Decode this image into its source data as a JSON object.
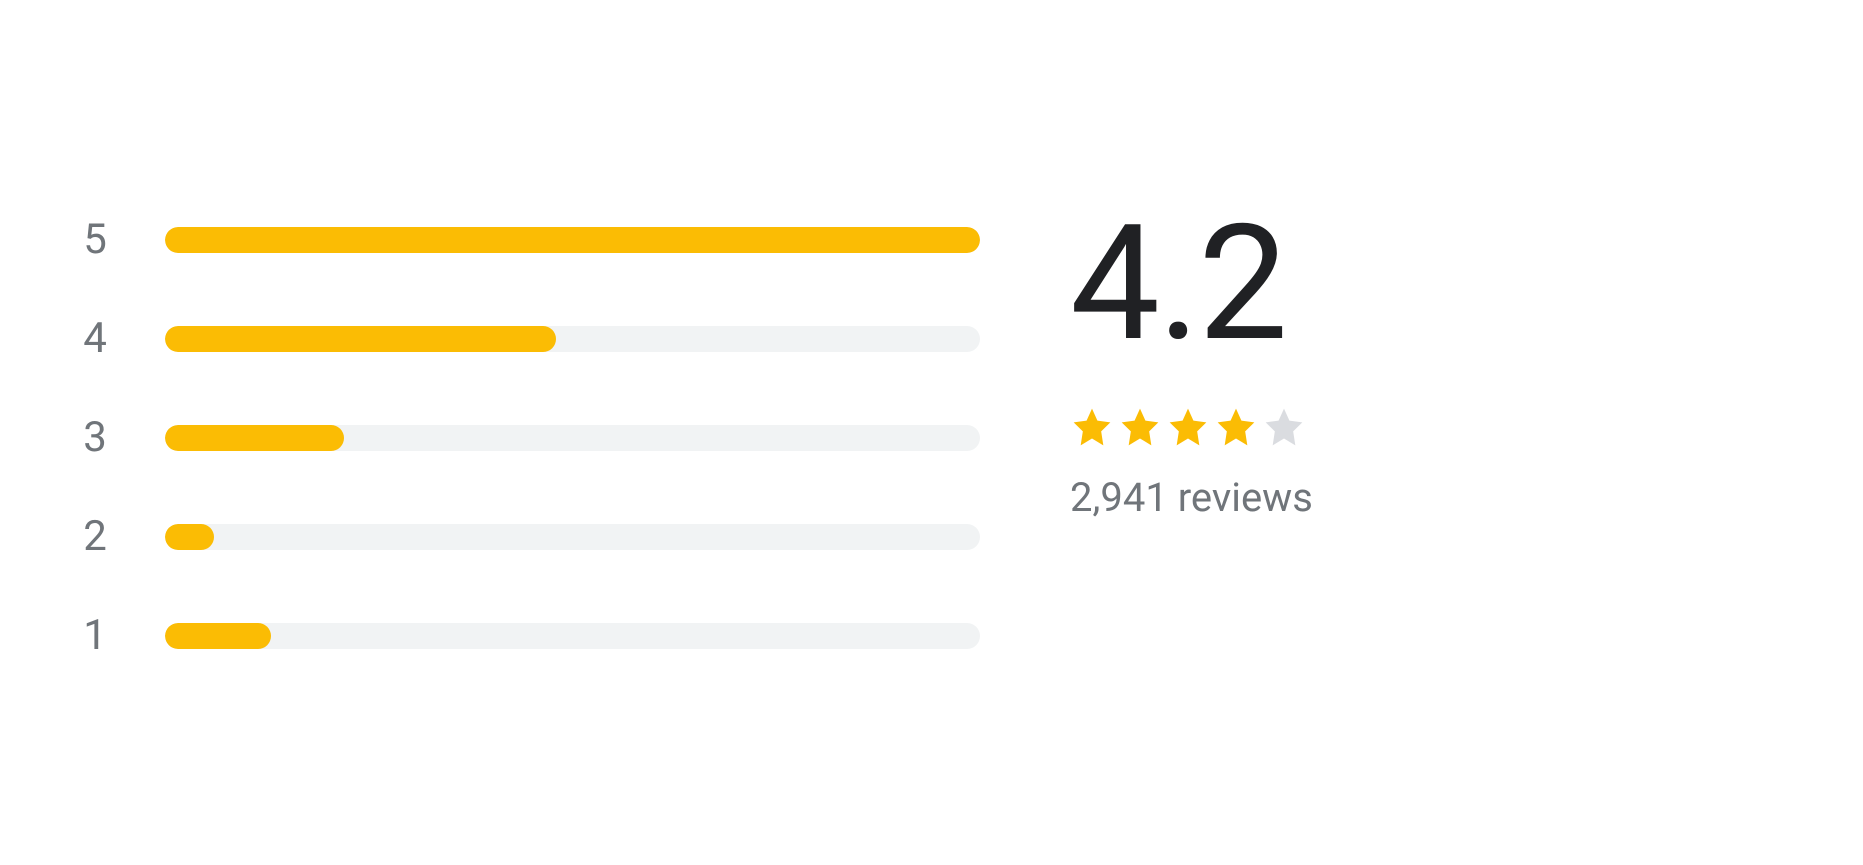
{
  "rating": {
    "score": "4.2",
    "reviews_text": "2,941 reviews",
    "star_color": "#fbbc04",
    "star_empty_color": "#dadce0",
    "stars": [
      {
        "fill": "full"
      },
      {
        "fill": "full"
      },
      {
        "fill": "full"
      },
      {
        "fill": "full"
      },
      {
        "fill": "empty"
      }
    ],
    "bars": [
      {
        "label": "5",
        "fill_percent": 100
      },
      {
        "label": "4",
        "fill_percent": 48
      },
      {
        "label": "3",
        "fill_percent": 22
      },
      {
        "label": "2",
        "fill_percent": 6
      },
      {
        "label": "1",
        "fill_percent": 13
      }
    ],
    "bar_fill_color": "#fbbc04",
    "bar_track_color": "#f1f3f4",
    "label_color": "#70757a",
    "score_color": "#202124"
  }
}
